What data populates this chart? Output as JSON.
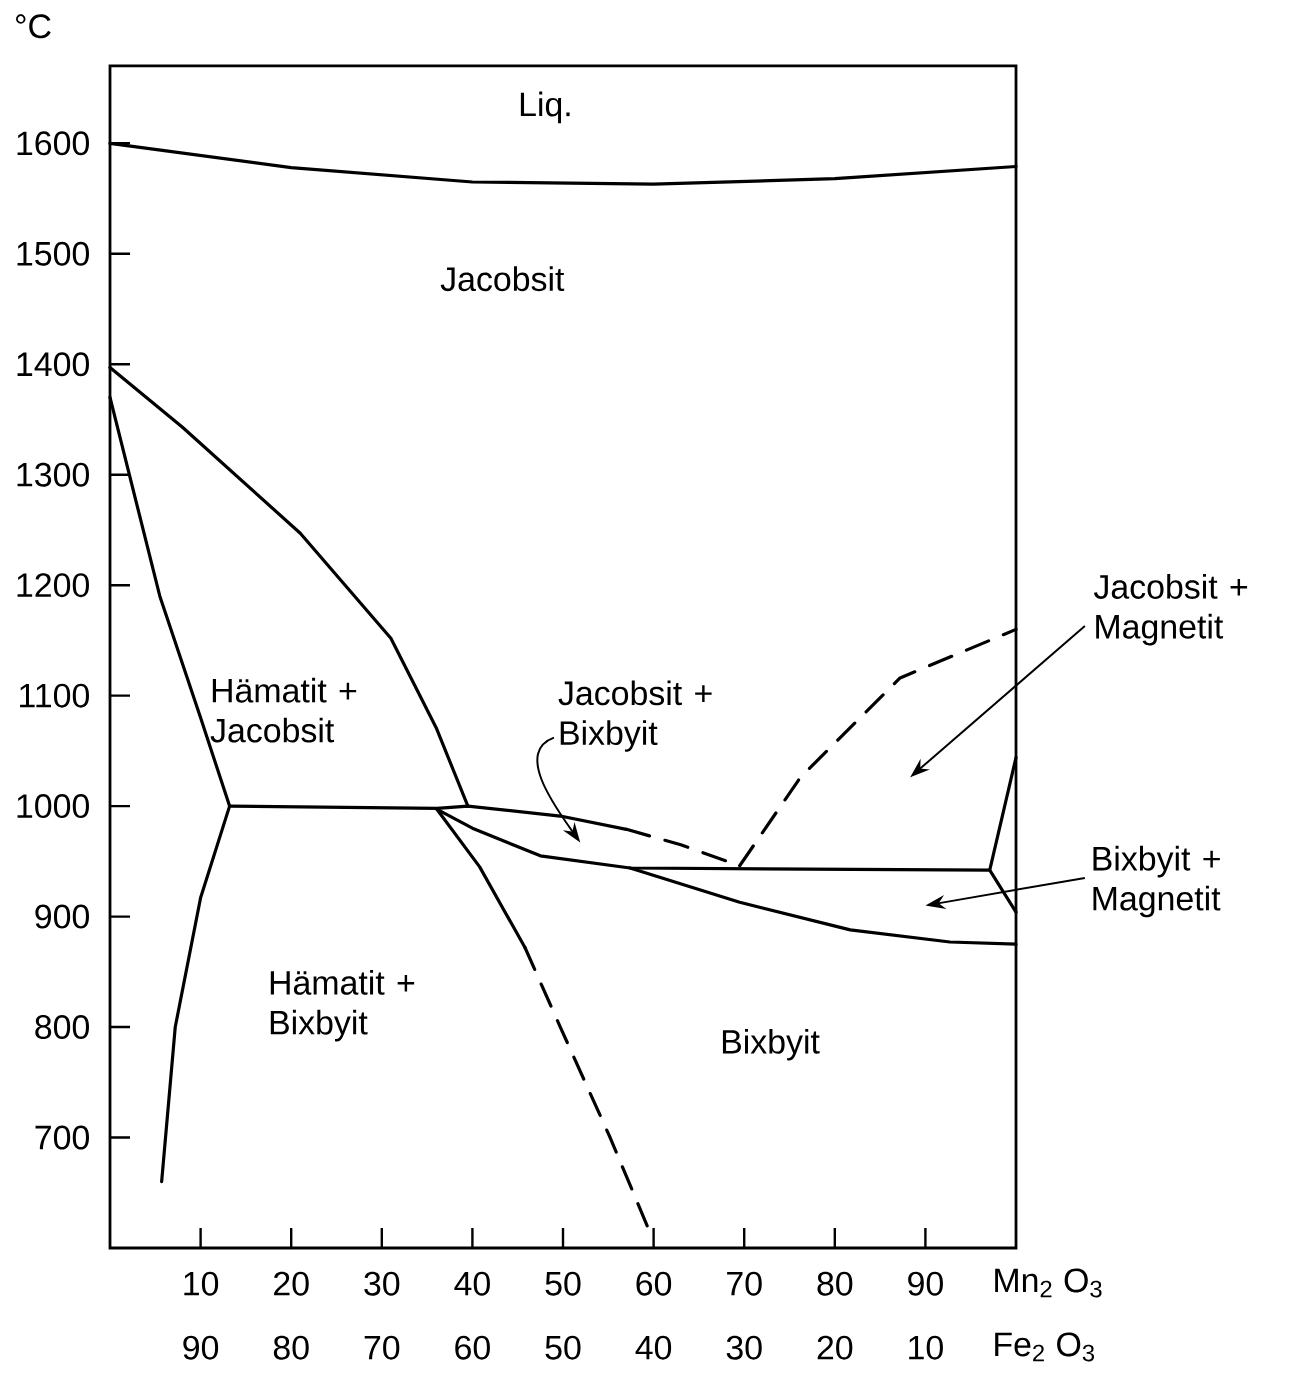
{
  "chart_data": {
    "type": "line",
    "xlabel": "Mn$_{2}$ O$_{3}$",
    "x2label": "Fe$_{2}$ O$_{3}$",
    "ylabel": "°C",
    "xlim": [
      0,
      100
    ],
    "xticks": [
      10,
      20,
      30,
      40,
      50,
      60,
      70,
      80,
      90
    ],
    "x2lim": [
      100,
      0
    ],
    "x2ticks": [
      90,
      80,
      70,
      60,
      50,
      40,
      30,
      20,
      10
    ],
    "ylim": [
      600,
      1670
    ],
    "yticks": [
      700,
      800,
      900,
      1000,
      1100,
      1200,
      1300,
      1400,
      1500,
      1600
    ],
    "grid": false,
    "marker": "none",
    "series": [
      {
        "color": "#000000",
        "line_style": "solid",
        "x": [
          0,
          20,
          40,
          60,
          80,
          100
        ],
        "values": [
          1600,
          1578,
          1565,
          1563,
          1568,
          1579
        ]
      },
      {
        "color": "#000000",
        "line_style": "solid",
        "x": [
          0,
          8,
          21,
          31,
          36,
          39.5
        ],
        "values": [
          1397,
          1343,
          1247,
          1152,
          1071,
          1000
        ]
      },
      {
        "color": "#000000",
        "line_style": "solid",
        "x": [
          0,
          5.5,
          10,
          13.2,
          10,
          7.2,
          5.7
        ],
        "values": [
          1370,
          1190,
          1080,
          1000,
          917,
          800,
          660
        ]
      },
      {
        "color": "#000000",
        "line_style": "solid",
        "x": [
          13.2,
          36.1,
          39.5,
          49.7,
          57
        ],
        "values": [
          1000,
          998,
          1000,
          991,
          979
        ]
      },
      {
        "color": "#000000",
        "line_style": "dashed",
        "x": [
          57,
          63,
          69.5
        ],
        "values": [
          979,
          965,
          946
        ]
      },
      {
        "color": "#000000",
        "line_style": "solid",
        "x": [
          36.1,
          40,
          47.5,
          57.4,
          97.1
        ],
        "values": [
          997,
          980,
          955,
          944,
          942
        ]
      },
      {
        "color": "#000000",
        "line_style": "solid",
        "x": [
          36.1,
          40.8,
          45.8
        ],
        "values": [
          997,
          945,
          872
        ]
      },
      {
        "color": "#000000",
        "line_style": "dashed",
        "x": [
          45.8,
          49.7,
          55.2,
          59.6
        ],
        "values": [
          872,
          800,
          700,
          614
        ]
      },
      {
        "color": "#000000",
        "line_style": "solid",
        "x": [
          57.4,
          69.5,
          81.7,
          92.7,
          100
        ],
        "values": [
          944,
          913,
          888,
          877,
          875
        ]
      },
      {
        "color": "#000000",
        "line_style": "solid",
        "x": [
          100,
          97.1,
          100
        ],
        "values": [
          1044,
          942,
          904
        ]
      },
      {
        "color": "#000000",
        "line_style": "dashed",
        "x": [
          69.5,
          76.2,
          87.2,
          100
        ],
        "values": [
          946,
          1026,
          1116,
          1160
        ]
      }
    ],
    "annotations": [
      "Liq.",
      "Jacobsit",
      "Hämatit + Jacobsit",
      "Jacobsit + Bixbyit",
      "Hämatit + Bixbyit",
      "Bixbyit",
      "Jacobsit + Magnetit",
      "Bixbyit + Magnetit"
    ]
  }
}
